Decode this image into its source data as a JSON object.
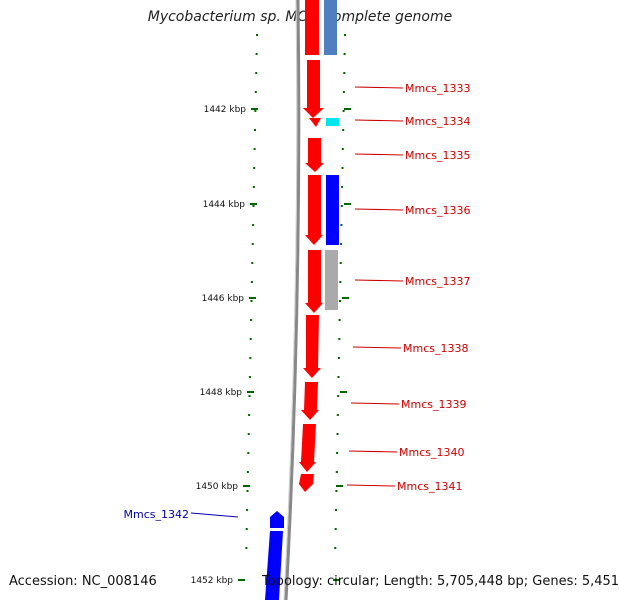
{
  "title": "Mycobacterium sp. MCS, complete genome",
  "footer": {
    "accession": "Accession: NC_008146",
    "summary": "Topology: circular; Length: 5,705,448 bp; Genes: 5,451"
  },
  "colors": {
    "forward": "#ff0000",
    "reverse": "#0000ff",
    "forward_label": "#cc0000",
    "reverse_label": "#0000aa",
    "tick": "#006600",
    "backbone": "#888888",
    "rna": "#00e5ee",
    "pseudo": "#aaaaaa",
    "blue_light": "#4f7fbf"
  },
  "ticks": [
    {
      "label": "1442 kbp"
    },
    {
      "label": "1444 kbp"
    },
    {
      "label": "1446 kbp"
    },
    {
      "label": "1448 kbp"
    },
    {
      "label": "1450 kbp"
    },
    {
      "label": "1452 kbp"
    }
  ],
  "genes": [
    {
      "label": "Mmcs_1333",
      "strand": "forward"
    },
    {
      "label": "Mmcs_1334",
      "strand": "forward"
    },
    {
      "label": "Mmcs_1335",
      "strand": "forward"
    },
    {
      "label": "Mmcs_1336",
      "strand": "forward"
    },
    {
      "label": "Mmcs_1337",
      "strand": "forward"
    },
    {
      "label": "Mmcs_1338",
      "strand": "forward"
    },
    {
      "label": "Mmcs_1339",
      "strand": "forward"
    },
    {
      "label": "Mmcs_1340",
      "strand": "forward"
    },
    {
      "label": "Mmcs_1341",
      "strand": "forward"
    },
    {
      "label": "Mmcs_1342",
      "strand": "reverse"
    }
  ]
}
